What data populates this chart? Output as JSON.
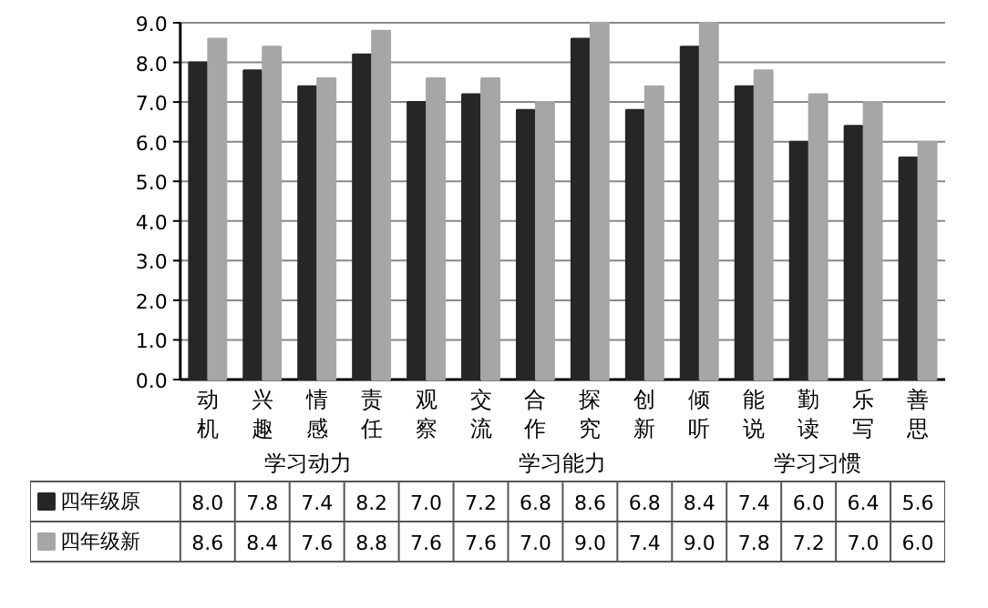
{
  "chart_data": {
    "type": "bar",
    "categories": [
      "动机",
      "兴趣",
      "情感",
      "责任",
      "观察",
      "交流",
      "合作",
      "探究",
      "创新",
      "倾听",
      "能说",
      "勤读",
      "乐写",
      "善思"
    ],
    "series": [
      {
        "name": "四年级原",
        "color": "#262626",
        "values": [
          8.0,
          7.8,
          7.4,
          8.2,
          7.0,
          7.2,
          6.8,
          8.6,
          6.8,
          8.4,
          7.4,
          6.0,
          6.4,
          5.6
        ],
        "value_labels": [
          "8.0",
          "7.8",
          "7.4",
          "8.2",
          "7.0",
          "7.2",
          "6.8",
          "8.6",
          "6.8",
          "8.4",
          "7.4",
          "6.0",
          "6.4",
          "5.6"
        ]
      },
      {
        "name": "四年级新",
        "color": "#a6a6a6",
        "values": [
          8.6,
          8.4,
          7.6,
          8.8,
          7.6,
          7.6,
          7.0,
          9.0,
          7.4,
          9.0,
          7.8,
          7.2,
          7.0,
          6.0
        ],
        "value_labels": [
          "8.6",
          "8.4",
          "7.6",
          "8.8",
          "7.6",
          "7.6",
          "7.0",
          "9.0",
          "7.4",
          "9.0",
          "7.8",
          "7.2",
          "7.0",
          "6.0"
        ]
      }
    ],
    "annotations": [
      "学习动力",
      "学习能力",
      "学习习惯"
    ],
    "ylim": [
      0,
      9
    ],
    "yticks": [
      {
        "value": 0,
        "label": "0.0"
      },
      {
        "value": 1,
        "label": "1.0"
      },
      {
        "value": 2,
        "label": "2.0"
      },
      {
        "value": 3,
        "label": "3.0"
      },
      {
        "value": 4,
        "label": "4.0"
      },
      {
        "value": 5,
        "label": "5.0"
      },
      {
        "value": 6,
        "label": "6.0"
      },
      {
        "value": 7,
        "label": "7.0"
      },
      {
        "value": 8,
        "label": "8.0"
      },
      {
        "value": 9,
        "label": "9.0"
      }
    ],
    "grid": "y",
    "legend": "bottom left"
  }
}
